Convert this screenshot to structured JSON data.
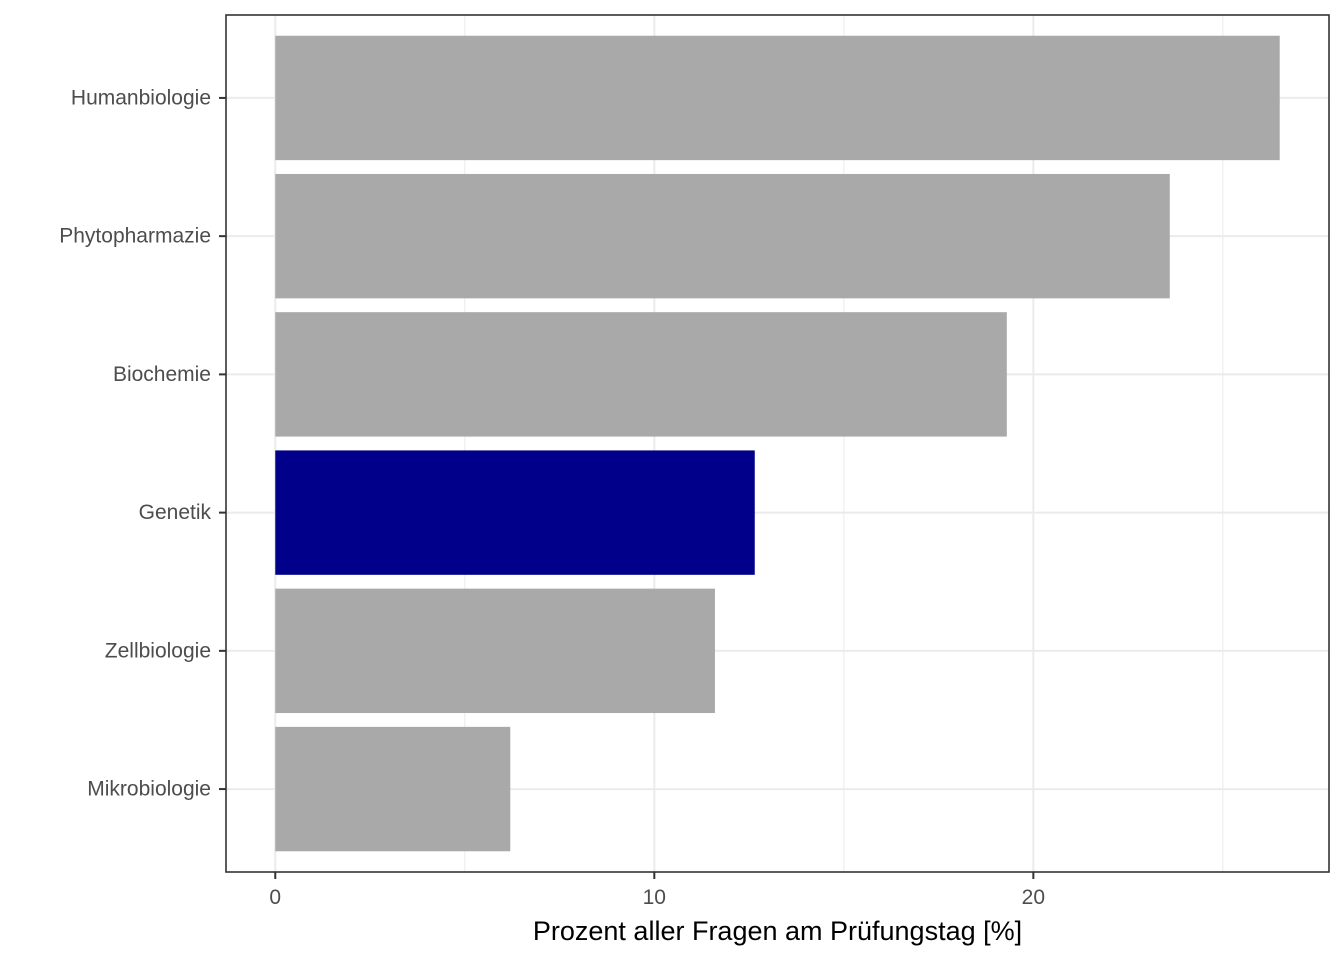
{
  "chart_data": {
    "type": "bar",
    "orientation": "horizontal",
    "title": "",
    "xlabel": "Prozent aller Fragen am Prüfungstag [%]",
    "ylabel": "",
    "categories": [
      "Humanbiologie",
      "Phytopharmazie",
      "Biochemie",
      "Genetik",
      "Zellbiologie",
      "Mikrobiologie"
    ],
    "values": [
      26.5,
      23.6,
      19.3,
      12.65,
      11.6,
      6.2
    ],
    "highlight": "Genetik",
    "xlim": [
      -1.3,
      27.8
    ],
    "x_ticks": [
      0,
      10,
      20
    ],
    "x_tick_labels": [
      "0",
      "10",
      "20"
    ],
    "grid": true,
    "colors": {
      "bar": "#a9a9a9",
      "highlight": "#00008b",
      "grid": "#ebebeb",
      "border": "#333333",
      "tick_text": "#4d4d4d",
      "axis_title": "#000000"
    }
  }
}
